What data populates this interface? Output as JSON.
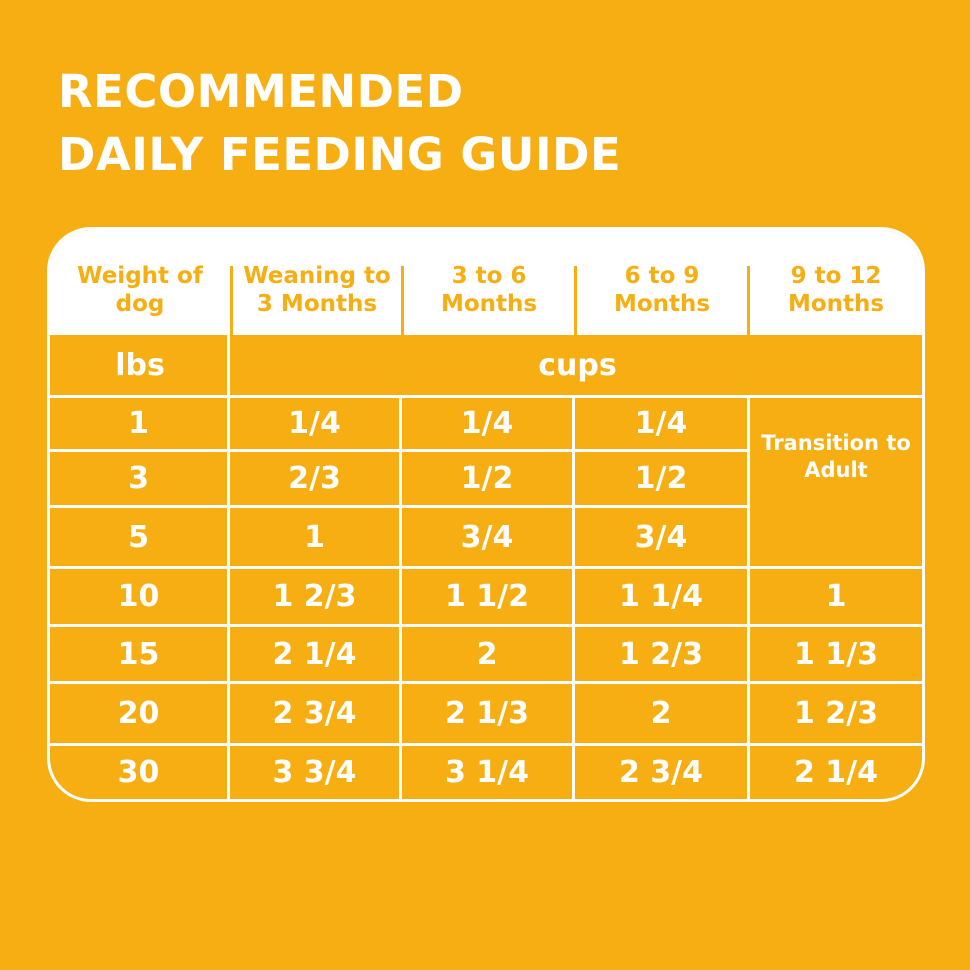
{
  "title": {
    "line1": "RECOMMENDED",
    "line2": "DAILY FEEDING GUIDE"
  },
  "table": {
    "headers": [
      "Weight of dog",
      "Weaning to 3 Months",
      "3 to 6 Months",
      "6 to 9 Months",
      "9 to 12 Months"
    ],
    "units": {
      "weight": "lbs",
      "amount": "cups"
    },
    "rows": [
      {
        "weight": "1",
        "c1": "1/4",
        "c2": "1/4",
        "c3": "1/4",
        "c4": "Transition to Adult"
      },
      {
        "weight": "3",
        "c1": "2/3",
        "c2": "1/2",
        "c3": "1/2",
        "c4": ""
      },
      {
        "weight": "5",
        "c1": "1",
        "c2": "3/4",
        "c3": "3/4",
        "c4": ""
      },
      {
        "weight": "10",
        "c1": "1 2/3",
        "c2": "1 1/2",
        "c3": "1 1/4",
        "c4": "1"
      },
      {
        "weight": "15",
        "c1": "2 1/4",
        "c2": "2",
        "c3": "1 2/3",
        "c4": "1 1/3"
      },
      {
        "weight": "20",
        "c1": "2 3/4",
        "c2": "2 1/3",
        "c3": "2",
        "c4": "1 2/3"
      },
      {
        "weight": "30",
        "c1": "3 3/4",
        "c2": "3 1/4",
        "c3": "2 3/4",
        "c4": "2 1/4"
      }
    ]
  },
  "colors": {
    "background": "#F7AE12",
    "text": "#FFFFFF"
  }
}
